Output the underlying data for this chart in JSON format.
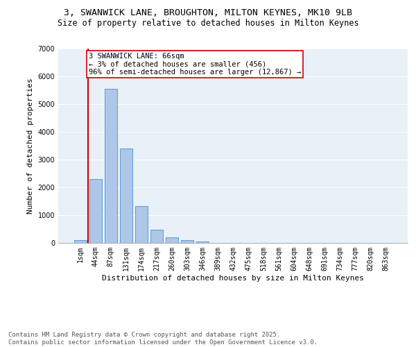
{
  "title_line1": "3, SWANWICK LANE, BROUGHTON, MILTON KEYNES, MK10 9LB",
  "title_line2": "Size of property relative to detached houses in Milton Keynes",
  "xlabel": "Distribution of detached houses by size in Milton Keynes",
  "ylabel": "Number of detached properties",
  "categories": [
    "1sqm",
    "44sqm",
    "87sqm",
    "131sqm",
    "174sqm",
    "217sqm",
    "260sqm",
    "303sqm",
    "346sqm",
    "389sqm",
    "432sqm",
    "475sqm",
    "518sqm",
    "561sqm",
    "604sqm",
    "648sqm",
    "691sqm",
    "734sqm",
    "777sqm",
    "820sqm",
    "863sqm"
  ],
  "values": [
    100,
    2300,
    5550,
    3400,
    1320,
    480,
    200,
    100,
    60,
    0,
    0,
    0,
    0,
    0,
    0,
    0,
    0,
    0,
    0,
    0,
    0
  ],
  "bar_color": "#aec6e8",
  "bar_edge_color": "#5b9bd5",
  "annotation_text": "3 SWANWICK LANE: 66sqm\n← 3% of detached houses are smaller (456)\n96% of semi-detached houses are larger (12,867) →",
  "annotation_box_color": "#ffffff",
  "annotation_box_edge_color": "#cc0000",
  "vline_color": "#cc0000",
  "vline_x": 0.5,
  "ylim": [
    0,
    7000
  ],
  "yticks": [
    0,
    1000,
    2000,
    3000,
    4000,
    5000,
    6000,
    7000
  ],
  "background_color": "#e8f0f8",
  "footer_line1": "Contains HM Land Registry data © Crown copyright and database right 2025.",
  "footer_line2": "Contains public sector information licensed under the Open Government Licence v3.0.",
  "title_fontsize": 9.5,
  "subtitle_fontsize": 8.5,
  "axis_label_fontsize": 8,
  "tick_fontsize": 7,
  "annotation_fontsize": 7.5,
  "footer_fontsize": 6.5
}
